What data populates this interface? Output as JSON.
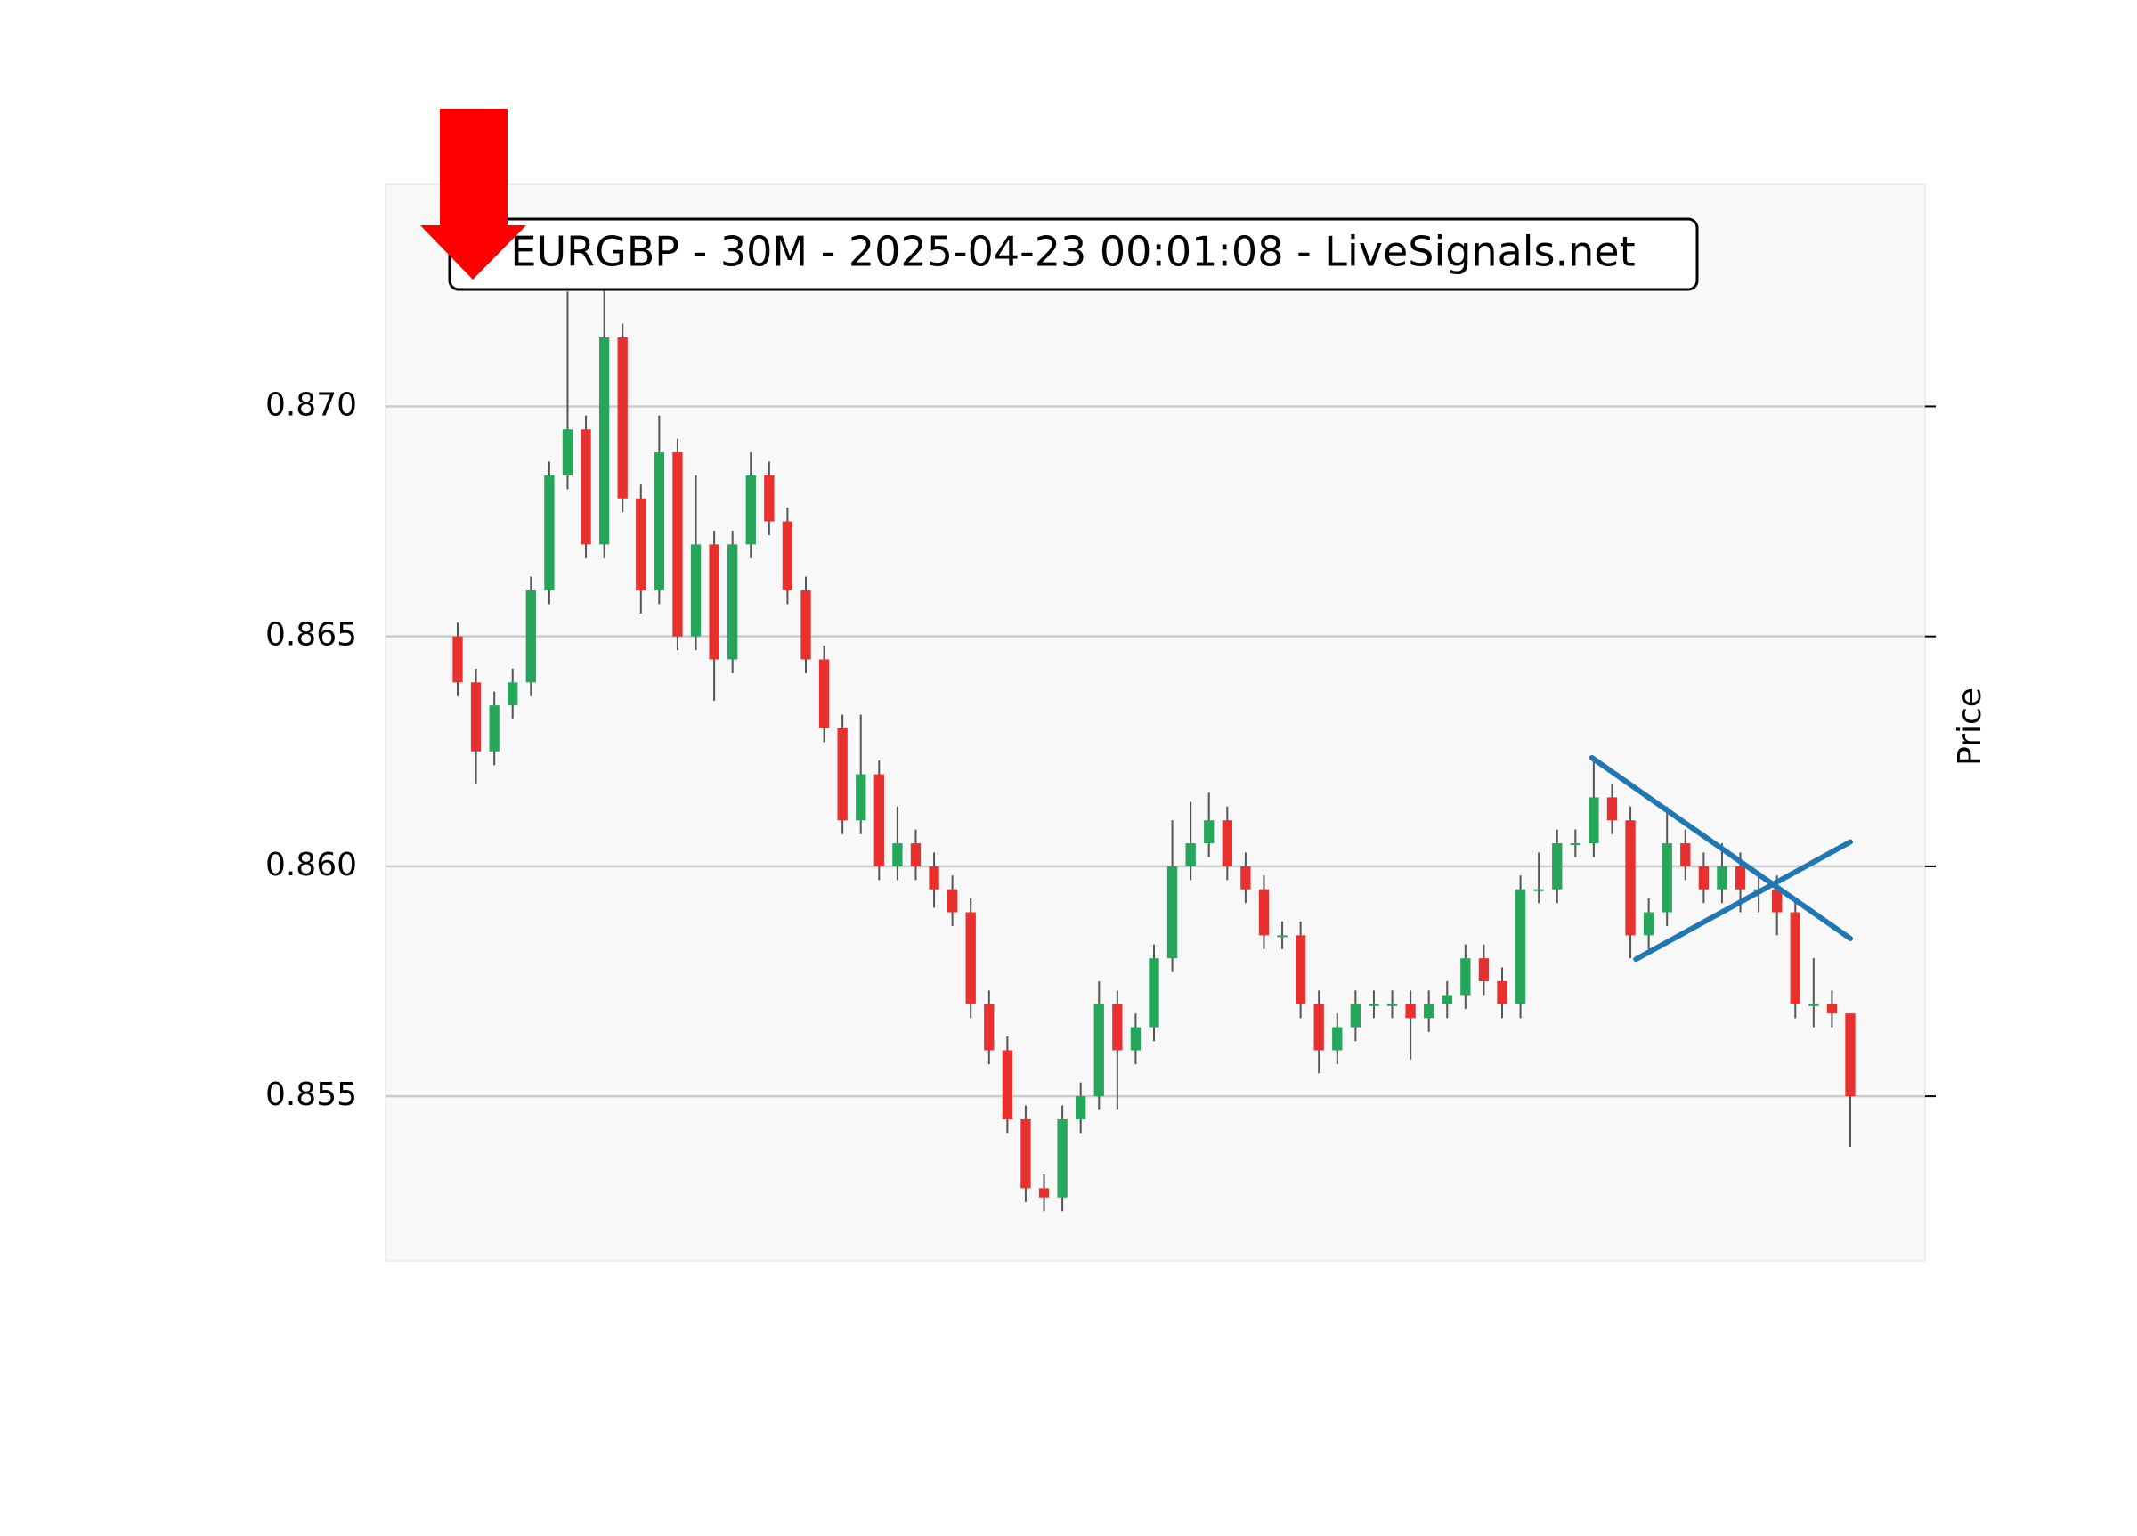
{
  "chart_data": {
    "type": "candlestick",
    "title": "EURGBP - 30M - 2025-04-23 00:01:08 - LiveSignals.net",
    "y_label": "Price",
    "up_color": "#26a65b",
    "down_color": "#e8312f",
    "ylim": [
      0.85142,
      0.87483
    ],
    "yticks": [
      {
        "value": 0.855,
        "label": "0.855"
      },
      {
        "value": 0.86,
        "label": "0.860"
      },
      0.865,
      {
        "value": 0.87,
        "label": "0.870"
      }
    ],
    "grid": true,
    "open": [
      0.865,
      0.864,
      0.8625,
      0.8635,
      0.864,
      0.866,
      0.8685,
      0.8695,
      0.867,
      0.8715,
      0.868,
      0.866,
      0.869,
      0.865,
      0.867,
      0.8645,
      0.867,
      0.8685,
      0.8675,
      0.866,
      0.8645,
      0.863,
      0.861,
      0.862,
      0.86,
      0.8605,
      0.86,
      0.8595,
      0.859,
      0.857,
      0.856,
      0.8545,
      0.853,
      0.8528,
      0.8545,
      0.855,
      0.857,
      0.856,
      0.8565,
      0.858,
      0.86,
      0.8605,
      0.861,
      0.86,
      0.8595,
      0.8585,
      0.8585,
      0.857,
      0.856,
      0.8565,
      0.857,
      0.857,
      0.857,
      0.8567,
      0.857,
      0.8572,
      0.858,
      0.8575,
      0.857,
      0.8595,
      0.8595,
      0.8605,
      0.8605,
      0.8615,
      0.861,
      0.8585,
      0.859,
      0.8605,
      0.86,
      0.8595,
      0.86,
      0.8595,
      0.8595,
      0.859,
      0.857,
      0.857,
      0.8568
    ],
    "high": [
      0.8653,
      0.8643,
      0.8638,
      0.8643,
      0.8663,
      0.8688,
      0.8725,
      0.8698,
      0.8728,
      0.8718,
      0.8683,
      0.8698,
      0.8693,
      0.8685,
      0.8673,
      0.8673,
      0.869,
      0.8688,
      0.8678,
      0.8663,
      0.8648,
      0.8633,
      0.8633,
      0.8623,
      0.8613,
      0.8608,
      0.8603,
      0.8598,
      0.8593,
      0.8573,
      0.8563,
      0.8548,
      0.8533,
      0.8548,
      0.8553,
      0.8575,
      0.8573,
      0.8568,
      0.8583,
      0.861,
      0.8614,
      0.8616,
      0.8613,
      0.8603,
      0.8598,
      0.8588,
      0.8588,
      0.8573,
      0.8568,
      0.8573,
      0.8573,
      0.8573,
      0.8573,
      0.8573,
      0.8575,
      0.8583,
      0.8583,
      0.8578,
      0.8598,
      0.8603,
      0.8608,
      0.8608,
      0.8623,
      0.8618,
      0.8613,
      0.8593,
      0.8613,
      0.8608,
      0.8603,
      0.8605,
      0.8603,
      0.8598,
      0.8598,
      0.8593,
      0.858,
      0.8573,
      0.8568
    ],
    "low": [
      0.8637,
      0.8618,
      0.8622,
      0.8632,
      0.8637,
      0.8657,
      0.8682,
      0.8667,
      0.8667,
      0.8677,
      0.8655,
      0.8657,
      0.8647,
      0.8647,
      0.8636,
      0.8642,
      0.8667,
      0.8672,
      0.8657,
      0.8642,
      0.8627,
      0.8607,
      0.8607,
      0.8597,
      0.8597,
      0.8597,
      0.8591,
      0.8587,
      0.8567,
      0.8557,
      0.8542,
      0.8527,
      0.8525,
      0.8525,
      0.8542,
      0.8547,
      0.8547,
      0.8557,
      0.8562,
      0.8577,
      0.8597,
      0.8602,
      0.8597,
      0.8592,
      0.8582,
      0.8582,
      0.8567,
      0.8555,
      0.8557,
      0.8562,
      0.8567,
      0.8567,
      0.8558,
      0.8564,
      0.8567,
      0.8569,
      0.8572,
      0.8567,
      0.8567,
      0.8592,
      0.8592,
      0.8602,
      0.8602,
      0.8607,
      0.858,
      0.8582,
      0.8587,
      0.8597,
      0.8592,
      0.8592,
      0.859,
      0.859,
      0.8585,
      0.8567,
      0.8565,
      0.8565,
      0.8539
    ],
    "close": [
      0.864,
      0.8625,
      0.8635,
      0.864,
      0.866,
      0.8685,
      0.8695,
      0.867,
      0.8715,
      0.868,
      0.866,
      0.869,
      0.865,
      0.867,
      0.8645,
      0.867,
      0.8685,
      0.8675,
      0.866,
      0.8645,
      0.863,
      0.861,
      0.862,
      0.86,
      0.8605,
      0.86,
      0.8595,
      0.859,
      0.857,
      0.856,
      0.8545,
      0.853,
      0.8528,
      0.8545,
      0.855,
      0.857,
      0.856,
      0.8565,
      0.858,
      0.86,
      0.8605,
      0.861,
      0.86,
      0.8595,
      0.8585,
      0.8585,
      0.857,
      0.856,
      0.8565,
      0.857,
      0.857,
      0.857,
      0.8567,
      0.857,
      0.8572,
      0.858,
      0.8575,
      0.857,
      0.8595,
      0.8595,
      0.8605,
      0.8605,
      0.8615,
      0.861,
      0.8585,
      0.859,
      0.8605,
      0.86,
      0.8595,
      0.86,
      0.8595,
      0.8595,
      0.859,
      0.857,
      0.857,
      0.8568,
      0.855
    ],
    "trend_lines": [
      {
        "color": "#1f77b4",
        "x": [
          61.9,
          76
        ],
        "y": [
          0.86236,
          0.85843
        ]
      },
      {
        "color": "#1f77b4",
        "x": [
          64.3,
          76
        ],
        "y": [
          0.85798,
          0.86053
        ]
      }
    ]
  }
}
